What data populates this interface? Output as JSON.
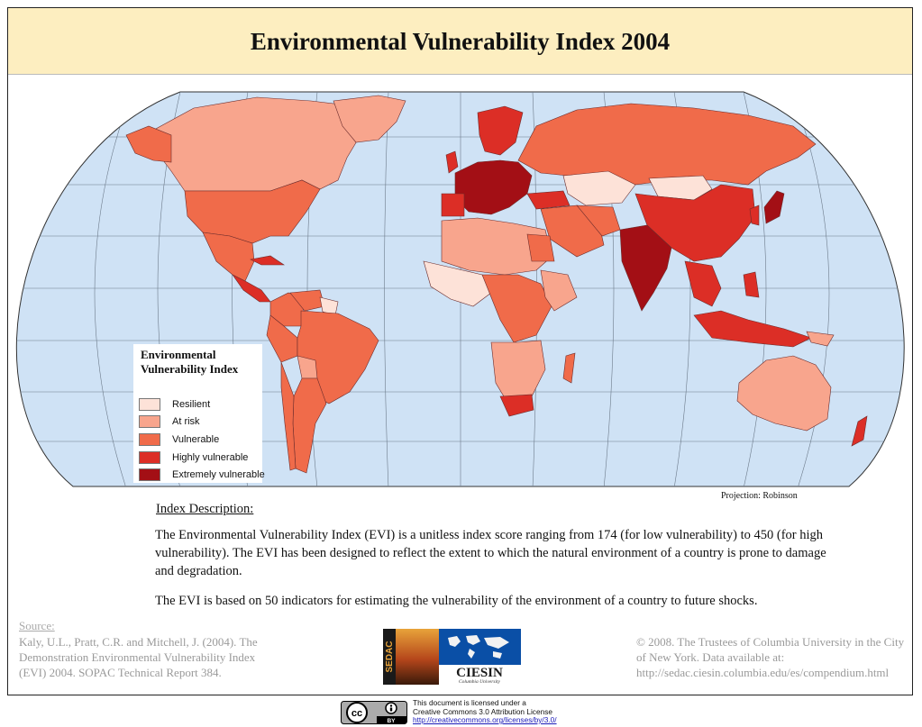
{
  "title": "Environmental Vulnerability Index 2004",
  "legend": {
    "title": "Environmental Vulnerability Index",
    "items": [
      {
        "label": "Resilient",
        "color": "#fde2d8"
      },
      {
        "label": "At risk",
        "color": "#f8a58d"
      },
      {
        "label": "Vulnerable",
        "color": "#f06b4a"
      },
      {
        "label": "Highly vulnerable",
        "color": "#dc2e26"
      },
      {
        "label": "Extremely vulnerable",
        "color": "#a30f15"
      }
    ]
  },
  "projection": "Projection: Robinson",
  "description": {
    "heading": "Index Description:",
    "paragraph1": "The Environmental Vulnerability Index (EVI) is a unitless index score ranging from 174 (for low vulnerability) to 450 (for high vulnerability). The EVI has been designed to reflect the extent to which the natural environment of a country is prone to damage and degradation.",
    "paragraph2": "The EVI is based on 50 indicators for estimating the vulnerability of the environment of a country to future shocks."
  },
  "source": {
    "label": "Source:",
    "text": "Kaly, U.L., Pratt, C.R. and Mitchell, J. (2004). The Demonstration Environmental Vulnerability Index (EVI) 2004. SOPAC Technical Report 384."
  },
  "copyright": "© 2008. The Trustees of Columbia University in the City of New York. Data available at: http://sedac.ciesin.columbia.edu/es/compendium.html",
  "logo": {
    "sedac": "SEDAC",
    "ciesin": "CIESIN",
    "university": "Columbia University"
  },
  "license": {
    "line1": "This document is licensed under a",
    "line2": "Creative Commons 3.0 Attribution License",
    "link": "http://creativecommons.org/licenses/by/3.0/",
    "badge_cc": "cc",
    "badge_by": "BY"
  },
  "colors": {
    "ocean": "#cfe2f5",
    "title_bg": "#fdeec0"
  }
}
